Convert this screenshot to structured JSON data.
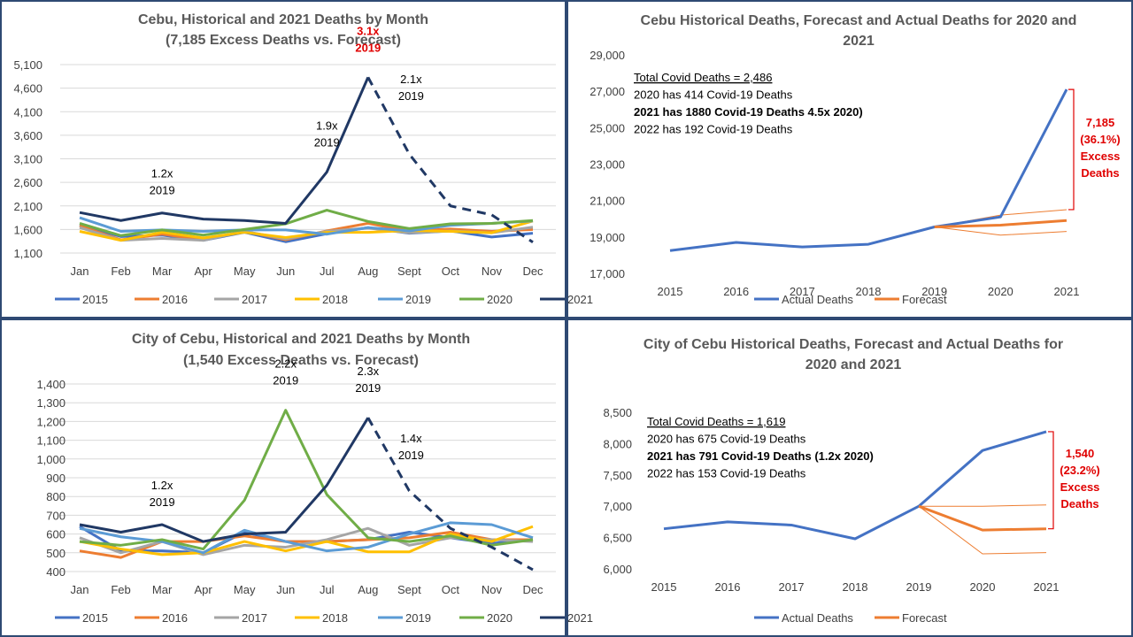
{
  "colors": {
    "border": "#2f4a73",
    "grid": "#d9d9d9",
    "axis_text": "#404040",
    "title_text": "#595959",
    "red": "#e00000",
    "actual": "#4472c4",
    "forecast": "#ed7d31"
  },
  "chart_data": [
    {
      "type": "line",
      "title": "Cebu, Historical and 2021 Deaths by Month",
      "subtitle": "(7,185 Excess Deaths vs. Forecast)",
      "categories": [
        "Jan",
        "Feb",
        "Mar",
        "Apr",
        "May",
        "Jun",
        "Jul",
        "Aug",
        "Sept",
        "Oct",
        "Nov",
        "Dec"
      ],
      "ylim": [
        1100,
        5100
      ],
      "yticks": [
        "5,100",
        "4,600",
        "4,100",
        "3,600",
        "3,100",
        "2,600",
        "2,100",
        "1,600",
        "1,100"
      ],
      "grid": true,
      "legend_position": "bottom",
      "series": [
        {
          "name": "2015",
          "color": "#4472c4",
          "values": [
            1700,
            1450,
            1480,
            1370,
            1540,
            1340,
            1510,
            1640,
            1520,
            1570,
            1440,
            1520
          ]
        },
        {
          "name": "2016",
          "color": "#ed7d31",
          "values": [
            1680,
            1380,
            1500,
            1380,
            1560,
            1380,
            1570,
            1730,
            1570,
            1610,
            1560,
            1600
          ]
        },
        {
          "name": "2017",
          "color": "#a5a5a5",
          "values": [
            1640,
            1370,
            1410,
            1370,
            1560,
            1400,
            1560,
            1630,
            1530,
            1570,
            1530,
            1650
          ]
        },
        {
          "name": "2018",
          "color": "#ffc000",
          "values": [
            1560,
            1370,
            1540,
            1420,
            1540,
            1430,
            1540,
            1540,
            1580,
            1560,
            1530,
            1780
          ]
        },
        {
          "name": "2019",
          "color": "#5b9bd5",
          "values": [
            1850,
            1560,
            1590,
            1560,
            1590,
            1590,
            1500,
            1640,
            1570,
            1690,
            1730,
            1780
          ]
        },
        {
          "name": "2020",
          "color": "#70ad47",
          "values": [
            1730,
            1470,
            1590,
            1480,
            1600,
            1720,
            2010,
            1770,
            1620,
            1720,
            1730,
            1790
          ]
        },
        {
          "name": "2021",
          "color": "#203864",
          "values": [
            1960,
            1790,
            1950,
            1820,
            1790,
            1730,
            2820,
            4830,
            3200,
            2100,
            1910,
            1330
          ],
          "dashed_from_index": 7
        }
      ],
      "annotations": [
        {
          "lines": [
            "1.2x",
            "2019"
          ],
          "at": "Mar",
          "red": false
        },
        {
          "lines": [
            "1.9x",
            "2019"
          ],
          "at": "Jul",
          "red": false
        },
        {
          "lines": [
            "3.1x",
            "2019"
          ],
          "at": "Aug",
          "red": true
        },
        {
          "lines": [
            "2.1x",
            "2019"
          ],
          "at": "Sept",
          "red": false
        }
      ]
    },
    {
      "type": "line",
      "title": "Cebu Historical Deaths, Forecast and Actual Deaths for 2020 and",
      "subtitle": "2021",
      "categories": [
        "2015",
        "2016",
        "2017",
        "2018",
        "2019",
        "2020",
        "2021"
      ],
      "ylim": [
        17000,
        29000
      ],
      "yticks": [
        "29,000",
        "27,000",
        "25,000",
        "23,000",
        "21,000",
        "19,000",
        "17,000"
      ],
      "grid": false,
      "legend_position": "bottom",
      "series": [
        {
          "name": "Actual Deaths",
          "color": "#4472c4",
          "values": [
            18250,
            18700,
            18450,
            18600,
            19550,
            20100,
            27100
          ]
        },
        {
          "name": "Forecast",
          "color": "#ed7d31",
          "values": [
            null,
            null,
            null,
            null,
            19550,
            19650,
            19900
          ]
        }
      ],
      "forecast_bounds": {
        "upper": [
          null,
          null,
          null,
          null,
          19550,
          20200,
          20500
        ],
        "lower": [
          null,
          null,
          null,
          null,
          19550,
          19100,
          19300
        ]
      },
      "text_box": [
        {
          "text": "Total Covid Deaths = 2,486",
          "underline": true,
          "bold": false
        },
        {
          "text": "2020 has 414 Covid-19 Deaths",
          "underline": false,
          "bold": false
        },
        {
          "text": "2021 has 1880 Covid-19 Deaths 4.5x 2020)",
          "underline": false,
          "bold": true
        },
        {
          "text": "2022 has 192 Covid-19 Deaths",
          "underline": false,
          "bold": false
        }
      ],
      "excess": {
        "lines": [
          "7,185",
          "(36.1%)",
          "Excess",
          "Deaths"
        ],
        "from": 27100,
        "to": 20500
      }
    },
    {
      "type": "line",
      "title": "City of Cebu, Historical and 2021 Deaths by Month",
      "subtitle": "(1,540 Excess Deaths vs. Forecast)",
      "categories": [
        "Jan",
        "Feb",
        "Mar",
        "Apr",
        "May",
        "Jun",
        "Jul",
        "Aug",
        "Sept",
        "Oct",
        "Nov",
        "Dec"
      ],
      "ylim": [
        400,
        1400
      ],
      "yticks": [
        "1,400",
        "1,300",
        "1,200",
        "1,100",
        "1,000",
        "900",
        "800",
        "700",
        "600",
        "500",
        "400"
      ],
      "grid": true,
      "legend_position": "bottom",
      "series": [
        {
          "name": "2015",
          "color": "#4472c4",
          "values": [
            640,
            510,
            510,
            500,
            610,
            560,
            560,
            570,
            610,
            580,
            550,
            570
          ]
        },
        {
          "name": "2016",
          "color": "#ed7d31",
          "values": [
            510,
            475,
            560,
            560,
            590,
            560,
            560,
            570,
            580,
            610,
            570,
            570
          ]
        },
        {
          "name": "2017",
          "color": "#a5a5a5",
          "values": [
            580,
            500,
            560,
            490,
            540,
            530,
            570,
            630,
            540,
            580,
            570,
            560
          ]
        },
        {
          "name": "2018",
          "color": "#ffc000",
          "values": [
            560,
            520,
            490,
            500,
            560,
            510,
            560,
            505,
            505,
            600,
            560,
            640
          ]
        },
        {
          "name": "2019",
          "color": "#5b9bd5",
          "values": [
            630,
            585,
            560,
            500,
            620,
            560,
            510,
            530,
            600,
            660,
            650,
            580
          ]
        },
        {
          "name": "2020",
          "color": "#70ad47",
          "values": [
            560,
            540,
            570,
            520,
            780,
            1260,
            810,
            580,
            560,
            590,
            540,
            570
          ]
        },
        {
          "name": "2021",
          "color": "#203864",
          "values": [
            650,
            610,
            650,
            560,
            600,
            610,
            860,
            1220,
            830,
            630,
            530,
            410
          ],
          "dashed_from_index": 7
        }
      ],
      "annotations": [
        {
          "lines": [
            "1.2x",
            "2019"
          ],
          "at": "Mar",
          "red": false
        },
        {
          "lines": [
            "2.2x",
            "2019"
          ],
          "at": "Jun",
          "red": false
        },
        {
          "lines": [
            "2.3x",
            "2019"
          ],
          "at": "Aug",
          "red": false
        },
        {
          "lines": [
            "1.4x",
            "2019"
          ],
          "at": "Sept",
          "red": false
        }
      ]
    },
    {
      "type": "line",
      "title": "City of Cebu Historical Deaths, Forecast and Actual Deaths for",
      "subtitle": "2020 and 2021",
      "categories": [
        "2015",
        "2016",
        "2017",
        "2018",
        "2019",
        "2020",
        "2021"
      ],
      "ylim": [
        6000,
        8500
      ],
      "yticks": [
        "8,500",
        "8,000",
        "7,500",
        "7,000",
        "6,500",
        "6,000"
      ],
      "grid": false,
      "legend_position": "bottom",
      "series": [
        {
          "name": "Actual Deaths",
          "color": "#4472c4",
          "values": [
            6640,
            6750,
            6700,
            6480,
            7000,
            7890,
            8190
          ]
        },
        {
          "name": "Forecast",
          "color": "#ed7d31",
          "values": [
            null,
            null,
            null,
            null,
            7000,
            6620,
            6640
          ]
        }
      ],
      "forecast_bounds": {
        "upper": [
          null,
          null,
          null,
          null,
          7000,
          7000,
          7020
        ],
        "lower": [
          null,
          null,
          null,
          null,
          7000,
          6240,
          6260
        ]
      },
      "text_box": [
        {
          "text": "Total Covid Deaths = 1,619",
          "underline": true,
          "bold": false
        },
        {
          "text": "2020 has 675 Covid-19 Deaths",
          "underline": false,
          "bold": false
        },
        {
          "text": "2021 has 791 Covid-19 Deaths (1.2x 2020)",
          "underline": false,
          "bold": true
        },
        {
          "text": "2022 has 153 Covid-19 Deaths",
          "underline": false,
          "bold": false
        }
      ],
      "excess": {
        "lines": [
          "1,540",
          "(23.2%)",
          "Excess",
          "Deaths"
        ],
        "from": 8190,
        "to": 6640
      }
    }
  ]
}
